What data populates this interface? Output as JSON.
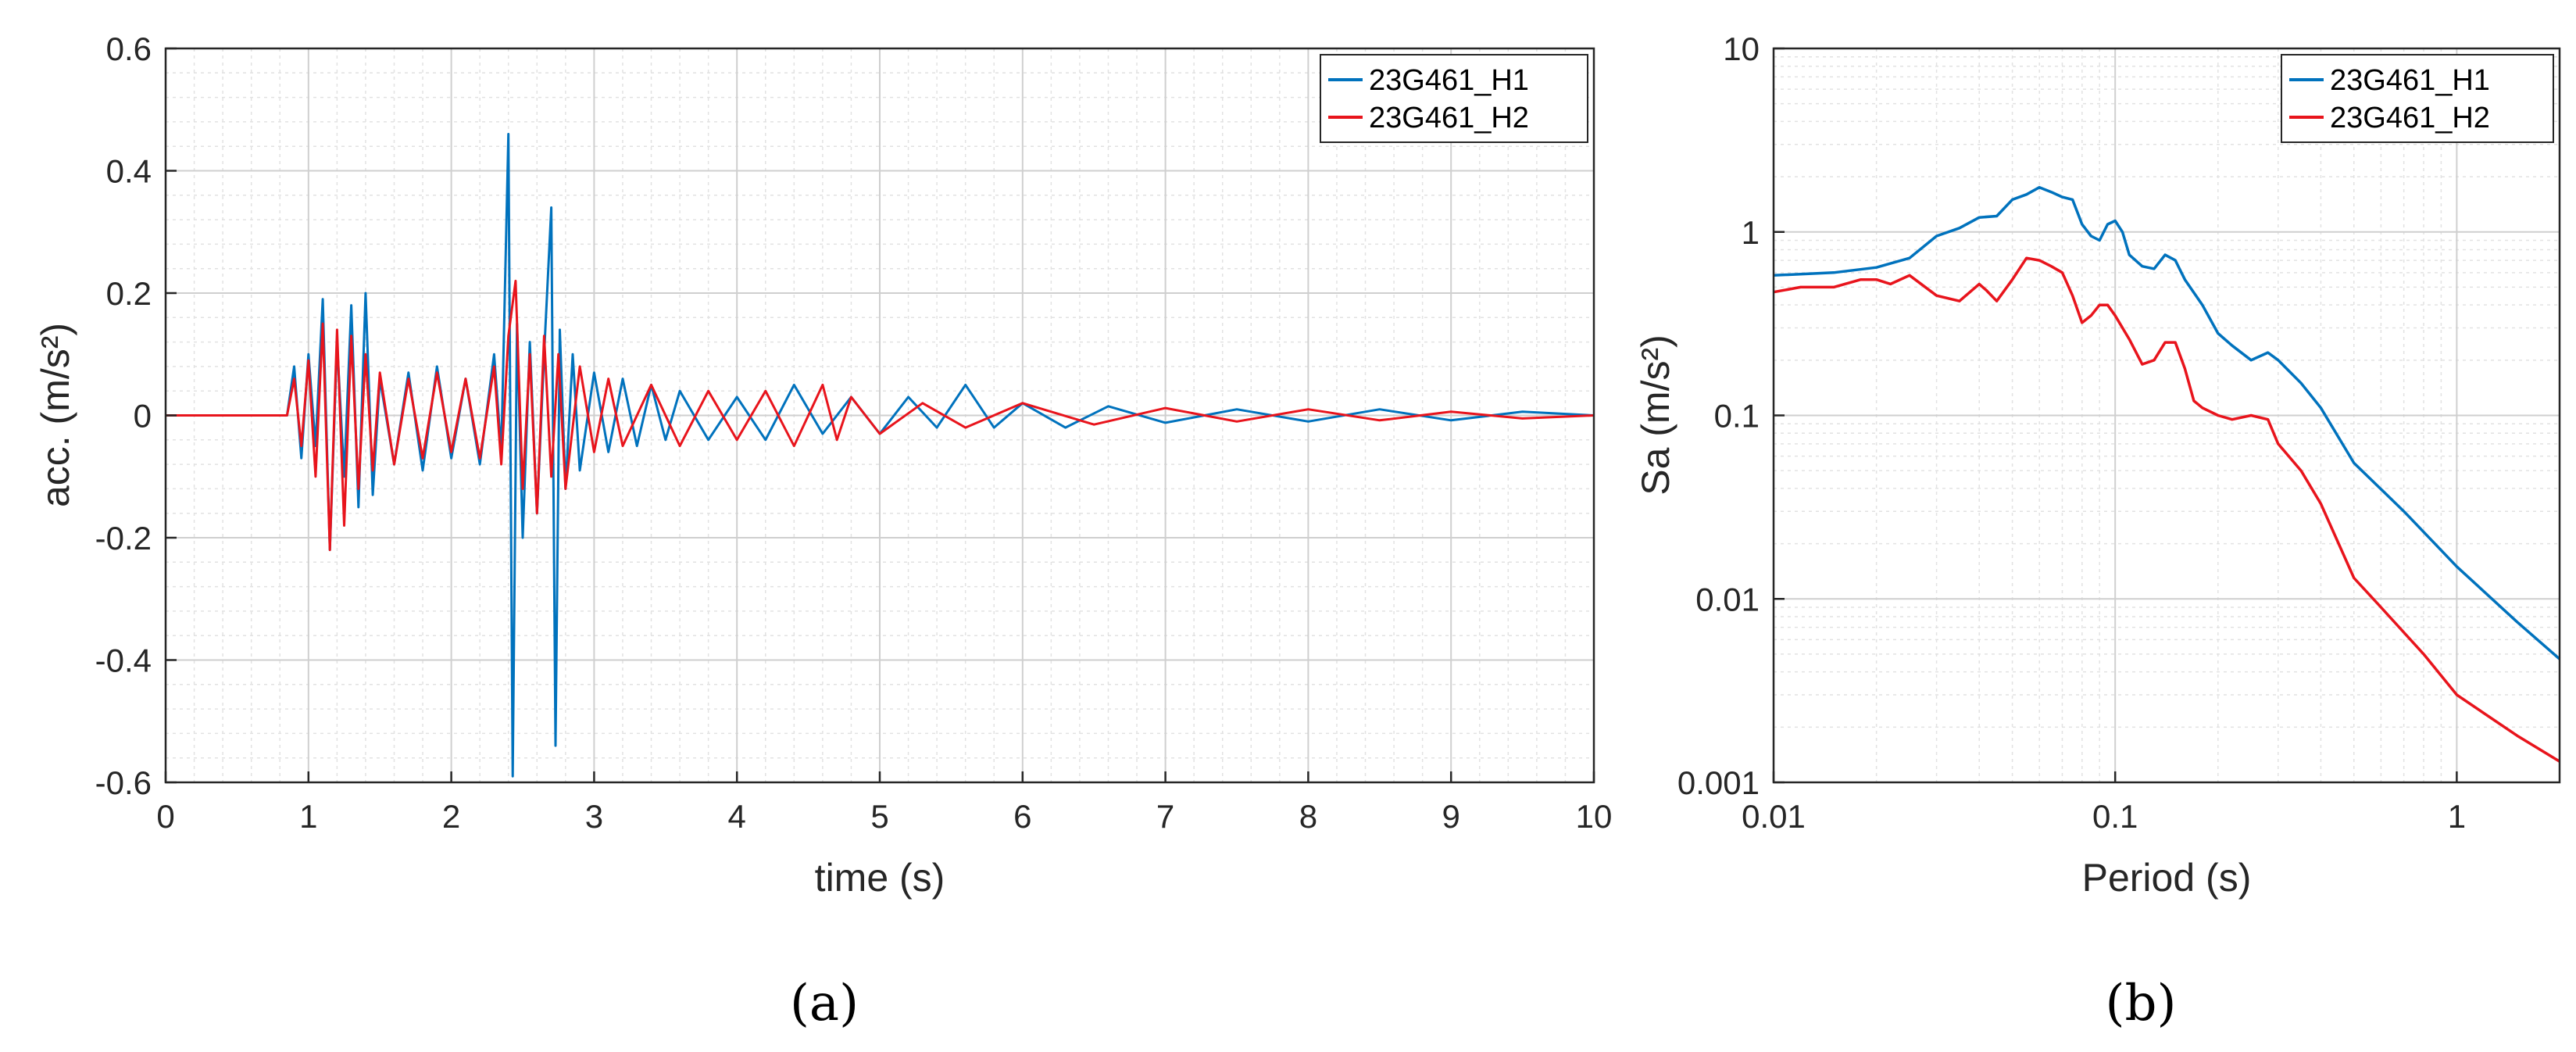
{
  "chart_data": [
    {
      "type": "line",
      "panel_label": "(a)",
      "xlabel": "time (s)",
      "ylabel": "acc. (m/s²)",
      "xlim": [
        0,
        10
      ],
      "ylim": [
        -0.6,
        0.6
      ],
      "xticks": [
        "0",
        "1",
        "2",
        "3",
        "4",
        "5",
        "6",
        "7",
        "8",
        "9",
        "10"
      ],
      "yticks": [
        "-0.6",
        "-0.4",
        "-0.2",
        "0",
        "0.2",
        "0.4",
        "0.6"
      ],
      "grid": true,
      "legend": "top-right",
      "series": [
        {
          "name": "23G461_H1",
          "color": "#0072BD",
          "x": [
            0,
            0.85,
            0.9,
            0.95,
            1.0,
            1.05,
            1.1,
            1.15,
            1.2,
            1.25,
            1.3,
            1.35,
            1.4,
            1.45,
            1.5,
            1.6,
            1.7,
            1.8,
            1.9,
            2.0,
            2.1,
            2.2,
            2.3,
            2.35,
            2.4,
            2.43,
            2.46,
            2.5,
            2.55,
            2.6,
            2.65,
            2.7,
            2.73,
            2.76,
            2.8,
            2.85,
            2.9,
            3.0,
            3.1,
            3.2,
            3.3,
            3.4,
            3.5,
            3.6,
            3.8,
            4.0,
            4.2,
            4.4,
            4.6,
            4.8,
            5.0,
            5.2,
            5.4,
            5.6,
            5.8,
            6.0,
            6.3,
            6.6,
            7.0,
            7.5,
            8.0,
            8.5,
            9.0,
            9.5,
            10.0
          ],
          "values": [
            0,
            0,
            0.08,
            -0.07,
            0.1,
            -0.05,
            0.19,
            -0.22,
            0.12,
            -0.1,
            0.18,
            -0.15,
            0.2,
            -0.13,
            0.06,
            -0.08,
            0.07,
            -0.09,
            0.08,
            -0.07,
            0.06,
            -0.08,
            0.1,
            -0.06,
            0.46,
            -0.59,
            0.15,
            -0.2,
            0.12,
            -0.16,
            0.1,
            0.34,
            -0.54,
            0.14,
            -0.12,
            0.1,
            -0.09,
            0.07,
            -0.06,
            0.06,
            -0.05,
            0.05,
            -0.04,
            0.04,
            -0.04,
            0.03,
            -0.04,
            0.05,
            -0.03,
            0.03,
            -0.03,
            0.03,
            -0.02,
            0.05,
            -0.02,
            0.02,
            -0.02,
            0.015,
            -0.012,
            0.01,
            -0.01,
            0.01,
            -0.008,
            0.006,
            0.0
          ]
        },
        {
          "name": "23G461_H2",
          "color": "#E8141C",
          "x": [
            0,
            0.85,
            0.9,
            0.95,
            1.0,
            1.05,
            1.1,
            1.15,
            1.2,
            1.25,
            1.3,
            1.35,
            1.4,
            1.45,
            1.5,
            1.6,
            1.7,
            1.8,
            1.9,
            2.0,
            2.1,
            2.2,
            2.3,
            2.35,
            2.4,
            2.45,
            2.5,
            2.55,
            2.6,
            2.65,
            2.7,
            2.75,
            2.8,
            2.9,
            3.0,
            3.1,
            3.2,
            3.4,
            3.6,
            3.8,
            4.0,
            4.2,
            4.4,
            4.6,
            4.7,
            4.8,
            5.0,
            5.3,
            5.6,
            6.0,
            6.5,
            7.0,
            7.5,
            8.0,
            8.5,
            9.0,
            9.5,
            10.0
          ],
          "values": [
            0,
            0,
            0.06,
            -0.05,
            0.09,
            -0.1,
            0.15,
            -0.22,
            0.14,
            -0.18,
            0.13,
            -0.12,
            0.1,
            -0.09,
            0.07,
            -0.08,
            0.06,
            -0.07,
            0.07,
            -0.06,
            0.06,
            -0.07,
            0.08,
            -0.08,
            0.13,
            0.22,
            -0.12,
            0.1,
            -0.16,
            0.13,
            -0.1,
            0.1,
            -0.12,
            0.08,
            -0.06,
            0.06,
            -0.05,
            0.05,
            -0.05,
            0.04,
            -0.04,
            0.04,
            -0.05,
            0.05,
            -0.04,
            0.03,
            -0.03,
            0.02,
            -0.02,
            0.02,
            -0.015,
            0.012,
            -0.01,
            0.01,
            -0.008,
            0.006,
            -0.005,
            0.0
          ]
        }
      ]
    },
    {
      "type": "line",
      "panel_label": "(b)",
      "xlabel": "Period (s)",
      "ylabel": "Sa (m/s²)",
      "xscale": "log",
      "yscale": "log",
      "xlim": [
        0.01,
        2
      ],
      "ylim": [
        0.001,
        10
      ],
      "xticks": [
        "0.01",
        "0.1",
        "1"
      ],
      "yticks": [
        "0.001",
        "0.01",
        "0.1",
        "1",
        "10"
      ],
      "grid": true,
      "legend": "top-right",
      "series": [
        {
          "name": "23G461_H1",
          "color": "#0072BD",
          "x": [
            0.01,
            0.015,
            0.02,
            0.025,
            0.03,
            0.035,
            0.04,
            0.045,
            0.05,
            0.055,
            0.06,
            0.065,
            0.07,
            0.075,
            0.08,
            0.085,
            0.09,
            0.095,
            0.1,
            0.105,
            0.11,
            0.12,
            0.13,
            0.14,
            0.15,
            0.16,
            0.18,
            0.2,
            0.22,
            0.25,
            0.28,
            0.3,
            0.35,
            0.4,
            0.5,
            0.7,
            1.0,
            1.5,
            2.0
          ],
          "values": [
            0.58,
            0.6,
            0.64,
            0.72,
            0.95,
            1.05,
            1.2,
            1.22,
            1.5,
            1.6,
            1.75,
            1.65,
            1.55,
            1.5,
            1.1,
            0.95,
            0.9,
            1.1,
            1.15,
            1.0,
            0.75,
            0.65,
            0.63,
            0.75,
            0.7,
            0.55,
            0.4,
            0.28,
            0.24,
            0.2,
            0.22,
            0.2,
            0.15,
            0.11,
            0.055,
            0.03,
            0.015,
            0.0075,
            0.0047
          ]
        },
        {
          "name": "23G461_H2",
          "color": "#E8141C",
          "x": [
            0.01,
            0.012,
            0.015,
            0.018,
            0.02,
            0.022,
            0.025,
            0.03,
            0.035,
            0.04,
            0.042,
            0.045,
            0.05,
            0.055,
            0.06,
            0.065,
            0.07,
            0.075,
            0.08,
            0.085,
            0.09,
            0.095,
            0.1,
            0.11,
            0.12,
            0.13,
            0.14,
            0.15,
            0.16,
            0.17,
            0.18,
            0.2,
            0.22,
            0.25,
            0.28,
            0.3,
            0.35,
            0.4,
            0.5,
            0.6,
            0.8,
            1.0,
            1.5,
            2.0
          ],
          "values": [
            0.47,
            0.5,
            0.5,
            0.55,
            0.55,
            0.52,
            0.58,
            0.45,
            0.42,
            0.52,
            0.48,
            0.42,
            0.55,
            0.72,
            0.7,
            0.65,
            0.6,
            0.45,
            0.32,
            0.35,
            0.4,
            0.4,
            0.35,
            0.26,
            0.19,
            0.2,
            0.25,
            0.25,
            0.18,
            0.12,
            0.11,
            0.1,
            0.095,
            0.1,
            0.095,
            0.07,
            0.05,
            0.033,
            0.013,
            0.009,
            0.005,
            0.003,
            0.0018,
            0.0013
          ]
        }
      ]
    }
  ]
}
